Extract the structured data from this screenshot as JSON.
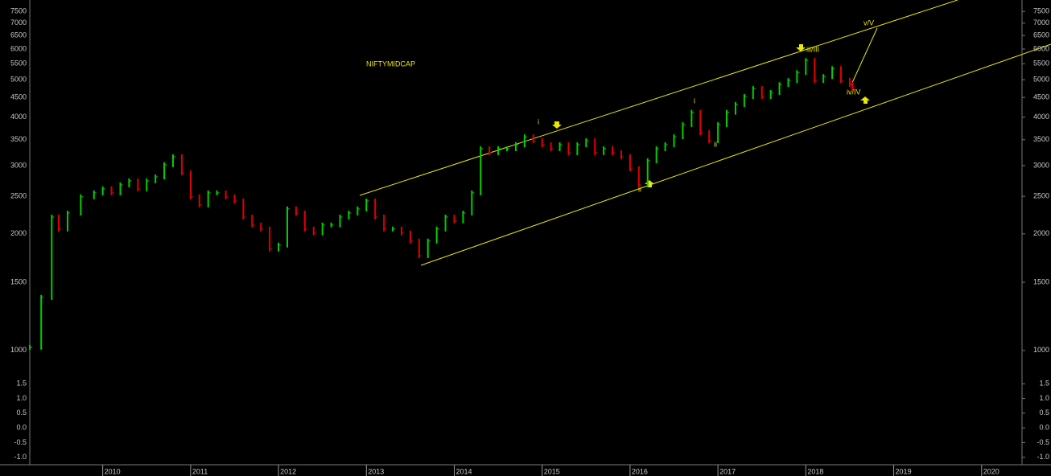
{
  "chart_data": {
    "type": "price-bars",
    "title": "NIFTYMIDCAP",
    "x": [
      2009.17,
      2009.3,
      2009.42,
      2009.5,
      2009.6,
      2009.75,
      2009.9,
      2010.0,
      2010.1,
      2010.2,
      2010.3,
      2010.4,
      2010.5,
      2010.6,
      2010.7,
      2010.8,
      2010.9,
      2011.0,
      2011.1,
      2011.2,
      2011.3,
      2011.4,
      2011.5,
      2011.6,
      2011.7,
      2011.8,
      2011.9,
      2012.0,
      2012.1,
      2012.2,
      2012.3,
      2012.4,
      2012.5,
      2012.6,
      2012.7,
      2012.8,
      2012.9,
      2013.0,
      2013.1,
      2013.2,
      2013.3,
      2013.4,
      2013.5,
      2013.6,
      2013.7,
      2013.8,
      2013.9,
      2014.0,
      2014.1,
      2014.2,
      2014.3,
      2014.4,
      2014.5,
      2014.6,
      2014.7,
      2014.8,
      2014.9,
      2015.0,
      2015.1,
      2015.2,
      2015.3,
      2015.4,
      2015.5,
      2015.6,
      2015.7,
      2015.8,
      2015.9,
      2016.0,
      2016.1,
      2016.2,
      2016.3,
      2016.4,
      2016.5,
      2016.6,
      2016.7,
      2016.8,
      2016.9,
      2017.0,
      2017.1,
      2017.2,
      2017.3,
      2017.4,
      2017.5,
      2017.6,
      2017.7,
      2017.8,
      2017.9,
      2018.0,
      2018.1,
      2018.2,
      2018.3,
      2018.4,
      2018.5,
      2018.53
    ],
    "values": [
      1019,
      1371,
      2210,
      2058,
      2263,
      2492,
      2552,
      2613,
      2552,
      2676,
      2740,
      2613,
      2740,
      2806,
      3016,
      3163,
      2873,
      2492,
      2375,
      2552,
      2552,
      2492,
      2432,
      2210,
      2108,
      2058,
      1827,
      1871,
      2319,
      2263,
      2058,
      2010,
      2108,
      2108,
      2210,
      2263,
      2319,
      2432,
      2210,
      2058,
      2058,
      2010,
      1916,
      1757,
      1916,
      2058,
      2210,
      2159,
      2263,
      2552,
      3317,
      3240,
      3317,
      3317,
      3397,
      3562,
      3479,
      3397,
      3317,
      3397,
      3240,
      3397,
      3479,
      3240,
      3317,
      3240,
      3163,
      2944,
      2676,
      3089,
      3317,
      3397,
      3562,
      3830,
      4121,
      3649,
      3479,
      3830,
      4121,
      4316,
      4526,
      4745,
      4526,
      4635,
      4858,
      4976,
      5216,
      5606,
      4976,
      5094,
      5340,
      4976,
      4858,
      4745
    ],
    "up_color": "#00d000",
    "down_color": "#e00000",
    "log_scale": true,
    "xlim": [
      2009.17,
      2020.46
    ],
    "xticks": [
      2010,
      2011,
      2012,
      2013,
      2014,
      2015,
      2016,
      2017,
      2018,
      2019,
      2020
    ],
    "ylim": [
      870,
      8030
    ],
    "yticks": [
      7500,
      7000,
      6500,
      6000,
      5500,
      5000,
      4500,
      4000,
      3500,
      3000,
      2500,
      2000,
      1500,
      1000
    ],
    "y2lim": [
      -1.2,
      1.7
    ],
    "y2ticks": [
      1.5,
      {
        "value": 1,
        "label": "1.0"
      },
      0.5,
      {
        "value": 0,
        "label": "0.0"
      },
      -0.5,
      {
        "value": -1,
        "label": "-1.0"
      }
    ],
    "annotations": [
      "i",
      "i",
      "ii",
      "ii",
      "iii/III",
      "iv/IV",
      "v/V"
    ]
  }
}
